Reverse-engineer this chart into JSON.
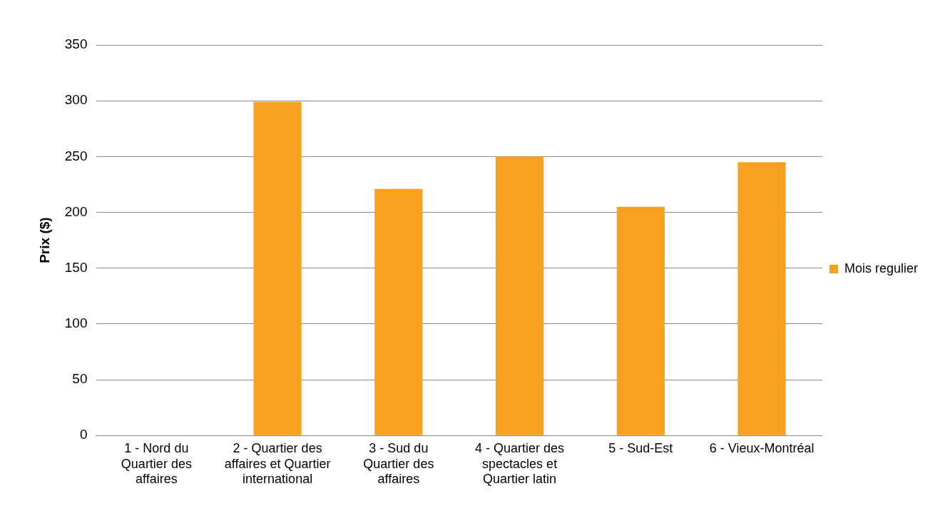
{
  "chart_data": {
    "type": "bar",
    "ylabel": "Prix ($)",
    "categories": [
      "1 - Nord du Quartier des affaires",
      "2 - Quartier des affaires et Quartier international",
      "3 - Sud du Quartier des affaires",
      "4 - Quartier des spectacles et Quartier latin",
      "5 - Sud-Est",
      "6 - Vieux-Montréal"
    ],
    "series": [
      {
        "name": "Mois regulier",
        "color": "#f8a01f",
        "values": [
          null,
          299,
          221,
          250,
          205,
          245
        ]
      }
    ],
    "ylim": [
      0,
      350
    ],
    "yticks": [
      0,
      50,
      100,
      150,
      200,
      250,
      300,
      350
    ],
    "grid": "y",
    "legend": "right"
  }
}
